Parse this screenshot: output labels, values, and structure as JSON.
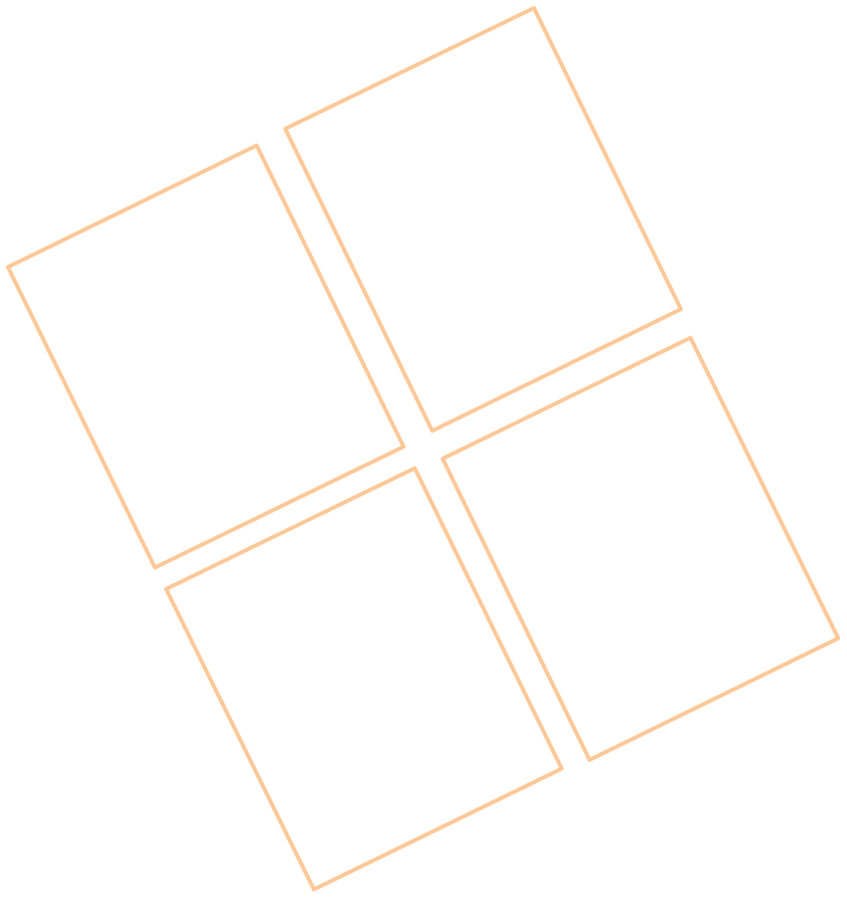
{
  "logo": {
    "name": "windows-logo-outline",
    "stroke_color": "#FDC898",
    "pane_count": 4
  }
}
